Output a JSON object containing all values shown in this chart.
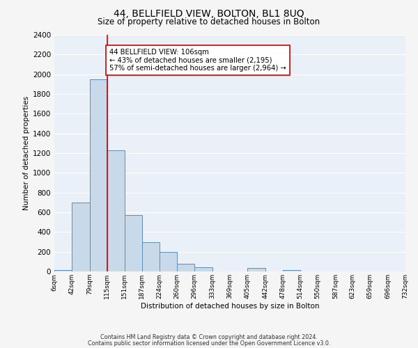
{
  "title": "44, BELLFIELD VIEW, BOLTON, BL1 8UQ",
  "subtitle": "Size of property relative to detached houses in Bolton",
  "xlabel": "Distribution of detached houses by size in Bolton",
  "ylabel": "Number of detached properties",
  "bar_color": "#c8d9ea",
  "bar_edge_color": "#5b8db8",
  "background_color": "#eaf0f8",
  "grid_color": "#ffffff",
  "fig_background": "#f5f5f5",
  "bin_edges": [
    6,
    42,
    79,
    115,
    151,
    187,
    224,
    260,
    296,
    333,
    369,
    405,
    442,
    478,
    514,
    550,
    587,
    623,
    659,
    696,
    732
  ],
  "bin_labels": [
    "6sqm",
    "42sqm",
    "79sqm",
    "115sqm",
    "151sqm",
    "187sqm",
    "224sqm",
    "260sqm",
    "296sqm",
    "333sqm",
    "369sqm",
    "405sqm",
    "442sqm",
    "478sqm",
    "514sqm",
    "550sqm",
    "587sqm",
    "623sqm",
    "659sqm",
    "696sqm",
    "732sqm"
  ],
  "bar_heights": [
    15,
    700,
    1950,
    1230,
    570,
    300,
    200,
    80,
    45,
    0,
    0,
    35,
    0,
    12,
    0,
    0,
    0,
    0,
    0,
    0
  ],
  "vline_x": 115,
  "vline_color": "#cc0000",
  "annotation_title": "44 BELLFIELD VIEW: 106sqm",
  "annotation_line1": "← 43% of detached houses are smaller (2,195)",
  "annotation_line2": "57% of semi-detached houses are larger (2,964) →",
  "annotation_box_color": "#ffffff",
  "annotation_box_edge": "#cc0000",
  "ylim": [
    0,
    2400
  ],
  "yticks": [
    0,
    200,
    400,
    600,
    800,
    1000,
    1200,
    1400,
    1600,
    1800,
    2000,
    2200,
    2400
  ],
  "footnote1": "Contains HM Land Registry data © Crown copyright and database right 2024.",
  "footnote2": "Contains public sector information licensed under the Open Government Licence v3.0."
}
